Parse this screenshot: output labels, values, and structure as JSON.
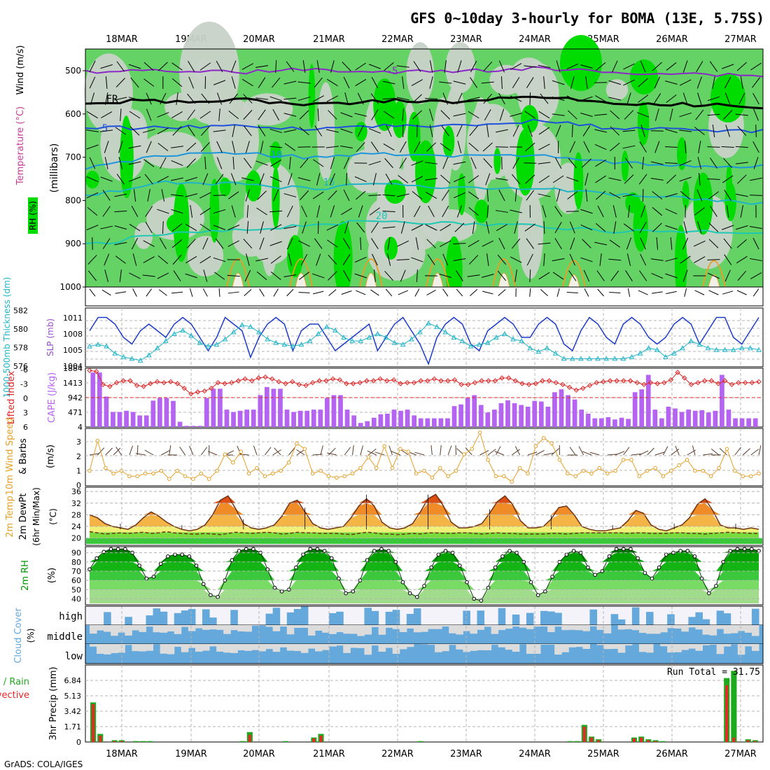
{
  "title": "GFS 0~10day 3-hourly for BOMA (13E, 5.75S)",
  "credit": "GrADS: COLA/IGES",
  "dates": [
    "18MAR",
    "19MAR",
    "20MAR",
    "21MAR",
    "22MAR",
    "23MAR",
    "24MAR",
    "25MAR",
    "26MAR",
    "27MAR"
  ],
  "colors": {
    "rh_dark": "#00dc00",
    "rh_mid": "#64d264",
    "rh_light": "#a0dca0",
    "rh_grey": "#c8d2c8",
    "slp": "#1e3cc8",
    "thickness": "#20b4c8",
    "lifted": "#dc2828",
    "cape": "#b464f0",
    "wind_speed": "#e6a028",
    "rh2m": "#009600",
    "cloud": "#64a8dc",
    "cloud_bg": "#dcdcdc",
    "precip_total": "#1eaa1e",
    "precip_conv": "#e62828"
  },
  "panels": {
    "upper": {
      "ylabel": "(millibars)",
      "legend": {
        "rh": "RH (%)",
        "temperature": "Temperature (°C)",
        "wind": "Wind (m/s)"
      },
      "ticks": [
        "500",
        "600",
        "700",
        "800",
        "900",
        "1000"
      ],
      "contour_labels": {
        "minus5": "-5",
        "fr": "FR",
        "t5": "5",
        "t10": "10",
        "t15": "15",
        "t20": "20"
      }
    },
    "slp": {
      "label_left": "1000-500mb Thickness (dm)",
      "label_right": "SLP (mb)",
      "ticks_left": [
        "576",
        "578",
        "580",
        "582"
      ],
      "ticks_right": [
        "1004",
        "1005",
        "1008",
        "1011"
      ]
    },
    "cape": {
      "label_left": "Lifted Index",
      "label_right": "CAPE (J/kg)",
      "ticks_left": [
        "6",
        "3",
        "0",
        "-3",
        "-6"
      ],
      "ticks_right": [
        "4",
        "471",
        "942",
        "1413",
        "1884"
      ]
    },
    "wind10": {
      "label_colored": "10m Wind Speed",
      "label_rest": "& Barbs",
      "unit": "(m/s)",
      "ticks": [
        "0",
        "1",
        "2",
        "3"
      ]
    },
    "temp2m": {
      "label1": "2m Temp",
      "label2": "2m DewPt",
      "label3": "(6hr Min/Max)",
      "unit": "(°C)",
      "ticks": [
        "20",
        "24",
        "28",
        "32",
        "36"
      ]
    },
    "rh2m": {
      "label": "2m RH",
      "unit": "(%)",
      "ticks": [
        "40",
        "50",
        "60",
        "70",
        "80",
        "90"
      ]
    },
    "cloud": {
      "label": "Cloud Cover",
      "unit": "(%)",
      "levels": [
        "high",
        "middle",
        "low"
      ]
    },
    "precip": {
      "label_total": "Total / Rain",
      "label_conv": "Convective",
      "ylabel": "3hr Precip (mm)",
      "ticks": [
        "0",
        "1.71",
        "3.42",
        "5.13",
        "6.84"
      ],
      "run_total": "Run Total = 31.75"
    }
  },
  "chart_data": [
    {
      "type": "line",
      "name": "sea-level-pressure",
      "ylim": [
        1004,
        1012
      ],
      "x_start": "17MAR 12Z",
      "x_step_hours": 3,
      "values": [
        1009,
        1011,
        1011,
        1010,
        1008,
        1007,
        1009,
        1010,
        1009,
        1008,
        1010,
        1011,
        1010,
        1008,
        1006,
        1008,
        1011,
        1010,
        1009,
        1005,
        1008,
        1010,
        1011,
        1010,
        1006,
        1009,
        1010,
        1010,
        1008,
        1006,
        1007,
        1008,
        1009,
        1010,
        1006,
        1008,
        1010,
        1011,
        1009,
        1007,
        1004,
        1008,
        1010,
        1011,
        1010,
        1007,
        1006,
        1009,
        1010,
        1011,
        1010,
        1008,
        1008,
        1010,
        1011,
        1010,
        1007,
        1006,
        1009,
        1011,
        1010,
        1008,
        1007,
        1010,
        1011,
        1010,
        1008,
        1007,
        1008,
        1010,
        1011,
        1010,
        1007,
        1009,
        1011,
        1011,
        1008,
        1007,
        1009,
        1011
      ]
    },
    {
      "type": "line",
      "name": "thickness",
      "ylim": [
        576,
        582
      ],
      "x_start": "17MAR 12Z",
      "x_step_hours": 3,
      "values": [
        578.0,
        578.2,
        578.0,
        577.2,
        576.8,
        576.6,
        576.4,
        577.0,
        577.8,
        578.6,
        579.4,
        579.8,
        579.2,
        578.4,
        578.0,
        578.2,
        578.8,
        579.6,
        580.4,
        580.2,
        579.6,
        578.8,
        578.4,
        578.2,
        578.0,
        578.2,
        578.6,
        579.4,
        580.2,
        579.8,
        579.0,
        578.6,
        578.6,
        579.0,
        579.4,
        579.0,
        578.4,
        578.2,
        578.8,
        579.6,
        580.6,
        580.2,
        579.6,
        579.0,
        578.6,
        578.0,
        578.2,
        578.4,
        579.0,
        579.4,
        578.8,
        578.6,
        577.8,
        577.4,
        577.8,
        577.2,
        576.6,
        576.6,
        576.6,
        576.6,
        576.6,
        576.6,
        576.6,
        576.6,
        576.8,
        577.2,
        577.8,
        577.6,
        576.8,
        577.2,
        577.8,
        578.6,
        578.2,
        577.8,
        577.6,
        577.6,
        577.6,
        577.8,
        577.8,
        577.6
      ]
    },
    {
      "type": "bar",
      "name": "cape",
      "ylim": [
        0,
        1884
      ],
      "values": [
        1880,
        1880,
        1050,
        520,
        520,
        560,
        520,
        400,
        400,
        910,
        1000,
        1000,
        900,
        180,
        40,
        40,
        40,
        1000,
        1320,
        1320,
        600,
        520,
        560,
        600,
        600,
        1100,
        1380,
        1320,
        1320,
        600,
        520,
        560,
        560,
        600,
        600,
        1000,
        1100,
        1100,
        600,
        400,
        140,
        200,
        320,
        440,
        460,
        600,
        560,
        600,
        400,
        300,
        300,
        300,
        300,
        300,
        720,
        780,
        1000,
        1100,
        760,
        500,
        600,
        820,
        920,
        820,
        760,
        700,
        900,
        880,
        700,
        1200,
        1300,
        1100,
        950,
        600,
        460,
        300,
        300,
        340,
        260,
        320,
        280,
        1200,
        1300,
        1800,
        600,
        300,
        700,
        640,
        520,
        600,
        560,
        580,
        500,
        560,
        1800,
        600,
        300,
        300,
        300,
        300
      ]
    },
    {
      "type": "line",
      "name": "lifted-index",
      "ylim": [
        -6,
        6
      ],
      "values": [
        -5.8,
        -5.6,
        -2.8,
        -2.4,
        -3.2,
        -3.6,
        -3.6,
        -2.6,
        -2.4,
        -3.0,
        -3.4,
        -3.2,
        -3.4,
        -3.0,
        -2.0,
        -0.8,
        -1.2,
        -1.4,
        -2.0,
        -3.2,
        -3.0,
        -3.2,
        -3.6,
        -4.0,
        -3.6,
        -4.2,
        -4.4,
        -4.0,
        -3.4,
        -3.0,
        -3.4,
        -2.8,
        -2.6,
        -3.2,
        -3.6,
        -3.6,
        -4.0,
        -3.8,
        -3.0,
        -3.0,
        -3.2,
        -3.6,
        -3.6,
        -4.0,
        -3.6,
        -3.8,
        -3.0,
        -3.2,
        -3.2,
        -3.6,
        -3.6,
        -4.0,
        -3.6,
        -3.6,
        -3.8,
        -2.8,
        -2.8,
        -3.2,
        -3.6,
        -3.6,
        -3.6,
        -4.2,
        -4.2,
        -3.6,
        -3.0,
        -2.8,
        -3.0,
        -3.6,
        -3.6,
        -3.2,
        -2.8,
        -2.2,
        -1.6,
        -2.0,
        -2.6,
        -3.2,
        -3.4,
        -3.6,
        -3.6,
        -3.6,
        -3.6,
        -3.2,
        -2.8,
        -3.2,
        -3.0,
        -3.2,
        -3.8,
        -5.4,
        -4.2,
        -2.8,
        -3.2,
        -3.6,
        -3.6,
        -3.0,
        -3.6,
        -2.8,
        -3.2,
        -3.2,
        -3.2,
        -3.4
      ]
    },
    {
      "type": "line",
      "name": "10m-wind-speed",
      "ylim": [
        0,
        4
      ],
      "values": [
        1.0,
        3.2,
        1.2,
        0.8,
        1.0,
        0.6,
        0.6,
        0.8,
        0.8,
        1.0,
        0.4,
        1.0,
        0.6,
        0.4,
        0.8,
        0.4,
        1.0,
        2.2,
        1.6,
        2.4,
        0.8,
        1.2,
        0.6,
        0.8,
        1.0,
        1.6,
        3.0,
        2.6,
        0.8,
        1.0,
        0.6,
        0.5,
        0.6,
        0.8,
        1.2,
        2.0,
        1.2,
        2.8,
        1.2,
        2.6,
        2.4,
        0.8,
        1.0,
        0.5,
        1.2,
        0.6,
        1.0,
        2.2,
        2.6,
        3.8,
        1.8,
        0.6,
        0.6,
        0.2,
        1.2,
        0.8,
        2.8,
        3.4,
        3.0,
        1.8,
        0.8,
        0.6,
        1.0,
        0.8,
        1.2,
        0.8,
        1.0,
        1.8,
        1.8,
        0.6,
        1.0,
        1.2,
        0.6,
        1.0,
        1.4,
        1.8,
        1.0,
        1.0,
        0.6,
        1.2,
        2.6,
        1.0,
        0.6,
        0.6,
        0.8
      ]
    },
    {
      "type": "area",
      "name": "2m-temperature",
      "ylim": [
        18,
        37
      ],
      "values": [
        28.0,
        27.0,
        25.0,
        24.0,
        23.5,
        23.0,
        24.5,
        27.0,
        29.0,
        27.5,
        25.5,
        24.0,
        23.0,
        22.5,
        23.0,
        24.5,
        28.0,
        33.0,
        34.5,
        30.0,
        25.0,
        23.5,
        23.0,
        23.5,
        24.5,
        27.5,
        32.0,
        33.0,
        29.0,
        25.0,
        23.5,
        23.0,
        23.5,
        24.0,
        27.0,
        31.0,
        33.5,
        31.0,
        25.5,
        23.5,
        23.0,
        23.5,
        25.0,
        29.0,
        33.5,
        35.0,
        31.0,
        25.5,
        23.5,
        23.5,
        24.0,
        25.0,
        28.5,
        32.5,
        34.5,
        31.5,
        26.0,
        23.5,
        23.5,
        24.0,
        26.5,
        30.5,
        31.0,
        28.0,
        24.0,
        23.0,
        22.5,
        22.5,
        23.0,
        23.5,
        26.0,
        29.5,
        28.5,
        24.5,
        23.0,
        22.5,
        23.5,
        24.5,
        27.0,
        31.5,
        33.5,
        29.5,
        24.5,
        23.5,
        23.5,
        23.0,
        23.5,
        23.0
      ],
      "dewpoint": [
        22.2,
        21.8,
        21.4,
        21.6,
        21.8,
        21.6,
        21.8,
        22.0,
        21.6,
        21.8,
        22.2,
        21.8,
        21.6,
        21.4,
        21.4,
        21.6,
        21.4,
        21.2,
        21.6,
        22.0,
        21.8,
        21.6,
        21.8,
        22.0,
        21.8,
        21.4,
        21.6,
        22.0,
        21.8,
        21.8,
        21.6,
        21.6,
        21.6,
        21.4,
        21.2,
        21.6,
        22.0,
        21.8,
        21.4,
        21.4,
        21.2,
        21.4,
        21.6,
        21.4,
        21.8,
        21.8,
        21.6,
        21.6,
        21.8,
        21.8,
        21.6,
        21.4,
        21.6,
        21.8,
        21.6,
        21.6,
        21.4,
        21.4,
        21.4,
        21.4,
        21.6,
        21.6,
        21.4,
        21.6,
        21.8,
        21.8,
        21.8,
        21.8,
        21.8,
        21.8,
        21.6,
        21.8,
        21.8,
        21.6,
        21.6,
        21.6,
        21.8,
        21.8,
        21.6,
        21.6,
        21.4,
        21.6,
        21.8,
        22.0,
        21.8,
        21.8,
        21.6,
        21.6
      ]
    },
    {
      "type": "area",
      "name": "2m-relative-humidity",
      "ylim": [
        35,
        95
      ],
      "values": [
        72,
        84,
        91,
        94,
        94,
        94,
        90,
        76,
        62,
        64,
        78,
        86,
        88,
        88,
        86,
        76,
        56,
        44,
        42,
        60,
        82,
        92,
        94,
        94,
        90,
        72,
        52,
        48,
        50,
        74,
        88,
        94,
        94,
        92,
        84,
        62,
        46,
        48,
        60,
        82,
        92,
        94,
        92,
        80,
        58,
        46,
        42,
        54,
        74,
        88,
        92,
        90,
        76,
        58,
        40,
        38,
        52,
        74,
        86,
        92,
        90,
        80,
        58,
        44,
        48,
        64,
        80,
        88,
        92,
        90,
        74,
        66,
        70,
        86,
        94,
        94,
        94,
        84,
        68,
        62,
        74,
        88,
        90,
        92,
        92,
        86,
        62,
        46,
        54,
        80,
        92,
        94,
        94,
        94,
        92
      ]
    },
    {
      "type": "bar",
      "name": "cloud-cover",
      "levels": [
        "high",
        "middle",
        "low"
      ]
    },
    {
      "type": "bar",
      "name": "3hr-precip",
      "ylim": [
        0,
        8.55
      ],
      "series": [
        {
          "name": "Total / Rain",
          "values": [
            4.4,
            0.9,
            0,
            0.2,
            0.2,
            0,
            0.1,
            0.1,
            0.1,
            0,
            0,
            0,
            0,
            0,
            0,
            0,
            0,
            0,
            0,
            0,
            0,
            0.1,
            1.1,
            0,
            0,
            0,
            0,
            0.1,
            0,
            0,
            0,
            0.5,
            0.9,
            0,
            0,
            0,
            0,
            0,
            0,
            0,
            0,
            0,
            0,
            0,
            0,
            0,
            0.1,
            0,
            0,
            0,
            0,
            0,
            0,
            0,
            0,
            0,
            0,
            0,
            0,
            0,
            0,
            0,
            0,
            0,
            0,
            0,
            0,
            0.1,
            0.1,
            1.9,
            0.6,
            0.3,
            0,
            0,
            0,
            0,
            0.5,
            0.6,
            0.3,
            0.2,
            0.1,
            0,
            0,
            0,
            0,
            0,
            0,
            0,
            0,
            7.1,
            7.9,
            0,
            0.3,
            0.2
          ]
        },
        {
          "name": "Convective",
          "values": [
            4.2,
            0.7,
            0,
            0.1,
            0.1,
            0,
            0,
            0,
            0,
            0,
            0,
            0,
            0,
            0,
            0,
            0,
            0,
            0,
            0,
            0,
            0,
            0,
            0.8,
            0,
            0,
            0,
            0,
            0,
            0,
            0,
            0,
            0.4,
            0.7,
            0,
            0,
            0,
            0,
            0,
            0,
            0,
            0,
            0,
            0,
            0,
            0,
            0,
            0,
            0,
            0,
            0,
            0,
            0,
            0,
            0,
            0,
            0,
            0,
            0,
            0,
            0,
            0,
            0,
            0,
            0,
            0,
            0,
            0,
            0,
            0,
            1.7,
            0.5,
            0.2,
            0,
            0,
            0,
            0,
            0.4,
            0.5,
            0.2,
            0.1,
            0,
            0,
            0,
            0,
            0,
            0,
            0,
            0,
            0,
            6.3,
            0.5,
            0,
            0.2,
            0.1
          ]
        }
      ]
    }
  ]
}
